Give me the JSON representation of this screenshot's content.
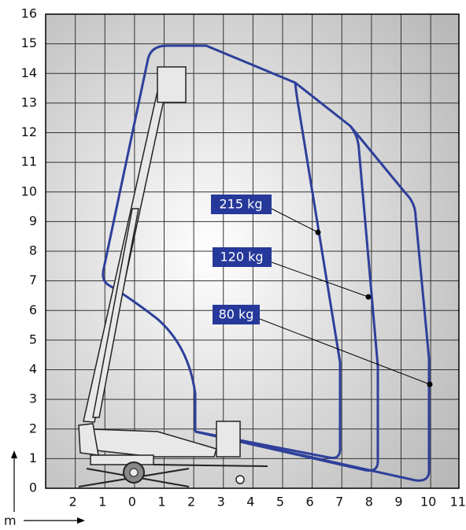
{
  "y_axis": {
    "labels": [
      "0",
      "1",
      "2",
      "3",
      "4",
      "5",
      "6",
      "7",
      "8",
      "9",
      "10",
      "11",
      "12",
      "13",
      "14",
      "15",
      "16"
    ]
  },
  "x_axis": {
    "labels": [
      "2",
      "1",
      "0",
      "1",
      "2",
      "3",
      "4",
      "5",
      "6",
      "7",
      "8",
      "9",
      "10",
      "11"
    ]
  },
  "unit": "m",
  "load_labels": [
    "215 kg",
    "120 kg",
    "80 kg"
  ]
}
